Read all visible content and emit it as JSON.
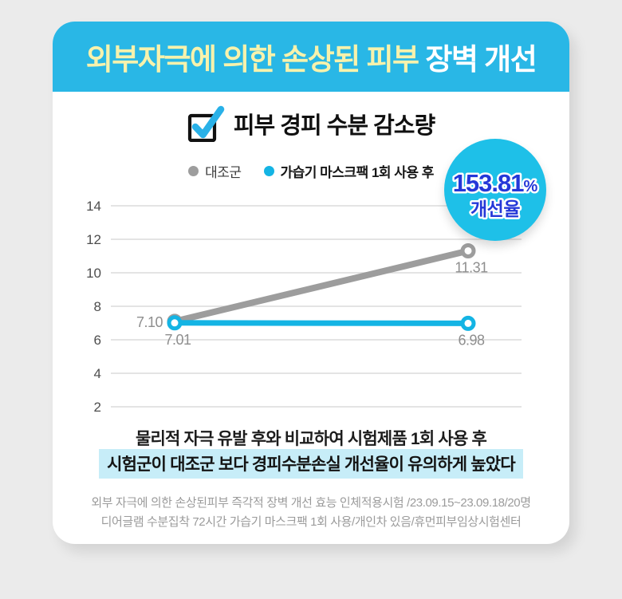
{
  "page": {
    "background": "#ebebeb"
  },
  "header": {
    "title_highlight": "외부자극에 의한 손상된 피부",
    "title_rest": " 장벽 개선",
    "bg_color": "#29b7e6",
    "highlight_color": "#f7f2ac",
    "rest_color": "#ffffff"
  },
  "section": {
    "checkbox_icon": "checked-checkbox-icon"
  },
  "badge": {
    "value": "153.81",
    "unit": "%",
    "label": "개선율",
    "bg_color": "#1ec0e8",
    "text_color": "#2438d8"
  },
  "chart_data": {
    "type": "line",
    "title": "피부 경피 수분 감소량",
    "series": [
      {
        "name": "대조군",
        "color": "#9d9d9d",
        "values": [
          7.1,
          11.31
        ]
      },
      {
        "name": "가습기 마스크팩 1회 사용 후",
        "color": "#14b4e4",
        "values": [
          7.01,
          6.98
        ]
      }
    ],
    "yticks": [
      14,
      12,
      10,
      8,
      6,
      4,
      2
    ],
    "ylim": [
      2,
      14
    ],
    "grid": true,
    "legend_position": "top",
    "x_axis_labels_visible": false,
    "annotation": "153.81% 개선율"
  },
  "caption": {
    "line1": "물리적 자극 유발 후와 비교하여 시험제품 1회 사용 후",
    "line2": "시험군이 대조군 보다 경피수분손실 개선율이 유의하게 높았다",
    "highlight_color": "#c7edf8"
  },
  "footnote": {
    "line1": "외부 자극에 의한 손상된피부 즉각적 장벽 개선 효능  인체적용시험 /23.09.15~23.09.18/20명",
    "line2": "디어글램 수분집착 72시간 가습기 마스크팩 1회 사용/개인차 있음/휴먼피부임상시험센터"
  }
}
